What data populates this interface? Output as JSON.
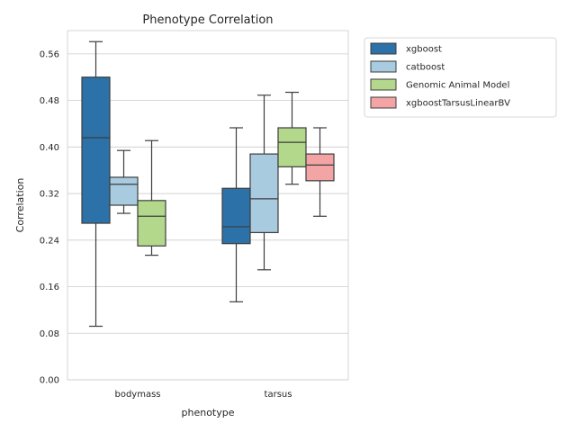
{
  "chart_data": {
    "type": "box",
    "title": "Phenotype Correlation",
    "xlabel": "phenotype",
    "ylabel": "Correlation",
    "ylim": [
      0,
      0.6
    ],
    "yticks": [
      "0.00",
      "0.08",
      "0.16",
      "0.24",
      "0.32",
      "0.40",
      "0.48",
      "0.56"
    ],
    "categories": [
      "bodymass",
      "tarsus"
    ],
    "grid": true,
    "legend_position": "outside-top-right",
    "series": [
      {
        "name": "xgboost",
        "color": "#2c72a8",
        "boxes": [
          {
            "category": "bodymass",
            "whisker_low": 0.092,
            "q1": 0.269,
            "median": 0.416,
            "q3": 0.52,
            "whisker_high": 0.581
          },
          {
            "category": "tarsus",
            "whisker_low": 0.134,
            "q1": 0.234,
            "median": 0.263,
            "q3": 0.329,
            "whisker_high": 0.433
          }
        ]
      },
      {
        "name": "catboost",
        "color": "#a9cbe0",
        "boxes": [
          {
            "category": "bodymass",
            "whisker_low": 0.286,
            "q1": 0.3,
            "median": 0.336,
            "q3": 0.348,
            "whisker_high": 0.394
          },
          {
            "category": "tarsus",
            "whisker_low": 0.189,
            "q1": 0.253,
            "median": 0.311,
            "q3": 0.388,
            "whisker_high": 0.489
          }
        ]
      },
      {
        "name": "Genomic Animal Model",
        "color": "#b3d88c",
        "boxes": [
          {
            "category": "bodymass",
            "whisker_low": 0.214,
            "q1": 0.23,
            "median": 0.281,
            "q3": 0.308,
            "whisker_high": 0.411
          }
        ],
        "tarsus_box": {
          "category": "tarsus",
          "whisker_low": 0.336,
          "q1": 0.366,
          "median": 0.408,
          "q3": 0.433,
          "whisker_high": 0.494
        }
      },
      {
        "name": "xgboostTarsusLinearBV",
        "color": "#f3a5a5",
        "boxes": [
          {
            "category": "tarsus",
            "whisker_low": 0.281,
            "q1": 0.342,
            "median": 0.369,
            "q3": 0.388,
            "whisker_high": 0.433
          }
        ]
      }
    ]
  }
}
